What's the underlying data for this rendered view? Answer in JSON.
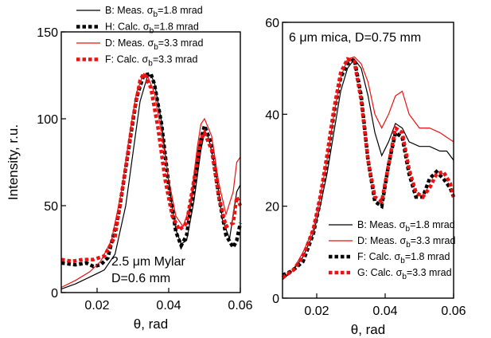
{
  "chart_data": [
    {
      "type": "line",
      "ylabel": "Intensity, r.u.",
      "xlabel": "θ, rad",
      "xlim": [
        0.01,
        0.06
      ],
      "ylim": [
        0,
        150
      ],
      "xticks": [
        0.02,
        0.04,
        0.06
      ],
      "xtick_labels": [
        "0.02",
        "0.04",
        "0.06"
      ],
      "yticks": [
        0,
        50,
        100,
        150
      ],
      "ytick_labels": [
        "0",
        "50",
        "100",
        "150"
      ],
      "grid": false,
      "legend_position": "top-left",
      "annotation": [
        "2.5 μm Mylar",
        "D=0.6 mm"
      ],
      "series": [
        {
          "name": "B: Meas. σb=1.8 mrad",
          "legend": {
            "prefix": "B: Meas. σ",
            "sub": "b",
            "suffix": "=1.8 mrad"
          },
          "color": "#000000",
          "style": "thin",
          "x": [
            0.01,
            0.014,
            0.018,
            0.022,
            0.025,
            0.028,
            0.03,
            0.032,
            0.034,
            0.035,
            0.036,
            0.038,
            0.04,
            0.042,
            0.0435,
            0.045,
            0.047,
            0.049,
            0.05,
            0.051,
            0.053,
            0.055,
            0.057,
            0.059,
            0.06
          ],
          "y": [
            2,
            5,
            9,
            13,
            22,
            50,
            80,
            110,
            124,
            125,
            121,
            98,
            63,
            36,
            28,
            30,
            52,
            82,
            92,
            90,
            72,
            42,
            31,
            58,
            62
          ]
        },
        {
          "name": "H: Calc. σb=1.8 mrad",
          "legend": {
            "prefix": "H: Calc. σ",
            "sub": "b",
            "suffix": "=1.8 mrad"
          },
          "color": "#000000",
          "style": "dotted",
          "x": [
            0.01,
            0.014,
            0.017,
            0.019,
            0.021,
            0.023,
            0.026,
            0.029,
            0.031,
            0.033,
            0.035,
            0.036,
            0.038,
            0.04,
            0.042,
            0.0435,
            0.045,
            0.047,
            0.049,
            0.05,
            0.052,
            0.054,
            0.056,
            0.058,
            0.059,
            0.06
          ],
          "y": [
            17,
            16,
            17,
            15,
            16,
            20,
            45,
            85,
            112,
            125,
            126,
            120,
            97,
            62,
            35,
            27,
            33,
            60,
            88,
            96,
            85,
            55,
            33,
            26,
            30,
            40
          ]
        },
        {
          "name": "D: Meas. σb=3.3 mrad",
          "legend": {
            "prefix": "D: Meas. σ",
            "sub": "b",
            "suffix": "=3.3 mrad"
          },
          "color": "#ee1111",
          "style": "thin",
          "x": [
            0.01,
            0.014,
            0.018,
            0.021,
            0.024,
            0.027,
            0.029,
            0.031,
            0.033,
            0.034,
            0.036,
            0.038,
            0.04,
            0.042,
            0.044,
            0.046,
            0.048,
            0.049,
            0.05,
            0.052,
            0.054,
            0.056,
            0.058,
            0.059,
            0.06
          ],
          "y": [
            3,
            7,
            12,
            18,
            30,
            60,
            90,
            115,
            126,
            125,
            115,
            92,
            65,
            44,
            38,
            50,
            84,
            97,
            100,
            90,
            63,
            45,
            58,
            75,
            78
          ]
        },
        {
          "name": "F: Calc. σb=3.3 mrad",
          "legend": {
            "prefix": "F: Calc. σ",
            "sub": "b",
            "suffix": "=3.3 mrad"
          },
          "color": "#ee1111",
          "style": "dotted",
          "x": [
            0.01,
            0.013,
            0.016,
            0.019,
            0.022,
            0.025,
            0.028,
            0.03,
            0.032,
            0.033,
            0.035,
            0.037,
            0.039,
            0.041,
            0.043,
            0.045,
            0.047,
            0.049,
            0.05,
            0.052,
            0.054,
            0.056,
            0.058,
            0.059,
            0.06
          ],
          "y": [
            19,
            18,
            19,
            19,
            21,
            32,
            72,
            100,
            122,
            126,
            118,
            95,
            65,
            44,
            36,
            40,
            64,
            88,
            92,
            82,
            55,
            38,
            40,
            55,
            50
          ]
        }
      ]
    },
    {
      "type": "line",
      "xlabel": "θ, rad",
      "xlim": [
        0.01,
        0.06
      ],
      "ylim": [
        0,
        60
      ],
      "xticks": [
        0.02,
        0.04,
        0.06
      ],
      "xtick_labels": [
        "0.02",
        "0.04",
        "0.06"
      ],
      "yticks": [
        0,
        20,
        40,
        60
      ],
      "ytick_labels": [
        "0",
        "20",
        "40",
        "60"
      ],
      "grid": false,
      "legend_position": "bottom-right",
      "title": "6 μm mica, D=0.75 mm",
      "series": [
        {
          "name": "B: Meas. σb=1.8 mrad",
          "legend": {
            "prefix": "B: Meas. σ",
            "sub": "b",
            "suffix": "=1.8 mrad"
          },
          "color": "#000000",
          "style": "thin",
          "x": [
            0.01,
            0.013,
            0.016,
            0.019,
            0.021,
            0.023,
            0.025,
            0.027,
            0.029,
            0.031,
            0.033,
            0.035,
            0.037,
            0.039,
            0.041,
            0.043,
            0.045,
            0.047,
            0.05,
            0.053,
            0.056,
            0.058,
            0.06
          ],
          "y": [
            4,
            6,
            9,
            14,
            20,
            27,
            36,
            45,
            50,
            52,
            50,
            44,
            36,
            31,
            34,
            38,
            37,
            34,
            33,
            33,
            32,
            32,
            30
          ]
        },
        {
          "name": "D: Meas. σb=3.3 mrad",
          "legend": {
            "prefix": "D: Meas. σ",
            "sub": "b",
            "suffix": "=3.3 mrad"
          },
          "color": "#ee1111",
          "style": "thin",
          "x": [
            0.01,
            0.013,
            0.016,
            0.019,
            0.021,
            0.023,
            0.025,
            0.027,
            0.029,
            0.031,
            0.033,
            0.035,
            0.037,
            0.039,
            0.041,
            0.043,
            0.045,
            0.047,
            0.05,
            0.053,
            0.056,
            0.058,
            0.06
          ],
          "y": [
            4.5,
            6,
            10,
            15,
            22,
            30,
            40,
            48,
            52,
            52.5,
            51,
            47,
            40,
            37,
            40,
            44,
            45,
            40,
            37,
            37,
            36,
            35,
            34
          ]
        },
        {
          "name": "F: Calc. σb=1.8 mrad",
          "legend": {
            "prefix": "F: Calc. σ",
            "sub": "b",
            "suffix": "=1.8 mrad"
          },
          "color": "#000000",
          "style": "dotted",
          "x": [
            0.01,
            0.013,
            0.016,
            0.019,
            0.021,
            0.023,
            0.025,
            0.027,
            0.029,
            0.031,
            0.033,
            0.035,
            0.037,
            0.039,
            0.041,
            0.043,
            0.045,
            0.047,
            0.049,
            0.051,
            0.053,
            0.055,
            0.057,
            0.059,
            0.06
          ],
          "y": [
            5,
            6,
            8,
            14,
            21,
            30,
            40,
            48,
            51,
            52,
            44,
            30,
            21,
            20,
            29,
            36,
            35,
            27,
            22,
            22,
            26,
            27.5,
            26,
            24,
            22
          ]
        },
        {
          "name": "G: Calc. σb=3.3 mrad",
          "legend": {
            "prefix": "G: Calc. σ",
            "sub": "b",
            "suffix": "=3.3 mrad"
          },
          "color": "#ee1111",
          "style": "dotted",
          "x": [
            0.01,
            0.013,
            0.016,
            0.019,
            0.021,
            0.023,
            0.025,
            0.027,
            0.029,
            0.031,
            0.033,
            0.035,
            0.037,
            0.039,
            0.041,
            0.043,
            0.045,
            0.047,
            0.049,
            0.051,
            0.053,
            0.055,
            0.057,
            0.059,
            0.06
          ],
          "y": [
            4.5,
            6,
            9,
            15,
            22,
            31,
            41,
            49,
            52,
            51.5,
            43,
            30,
            22,
            21,
            29,
            37,
            36,
            28,
            23,
            22,
            24,
            27,
            27.5,
            25,
            22
          ]
        }
      ]
    }
  ]
}
